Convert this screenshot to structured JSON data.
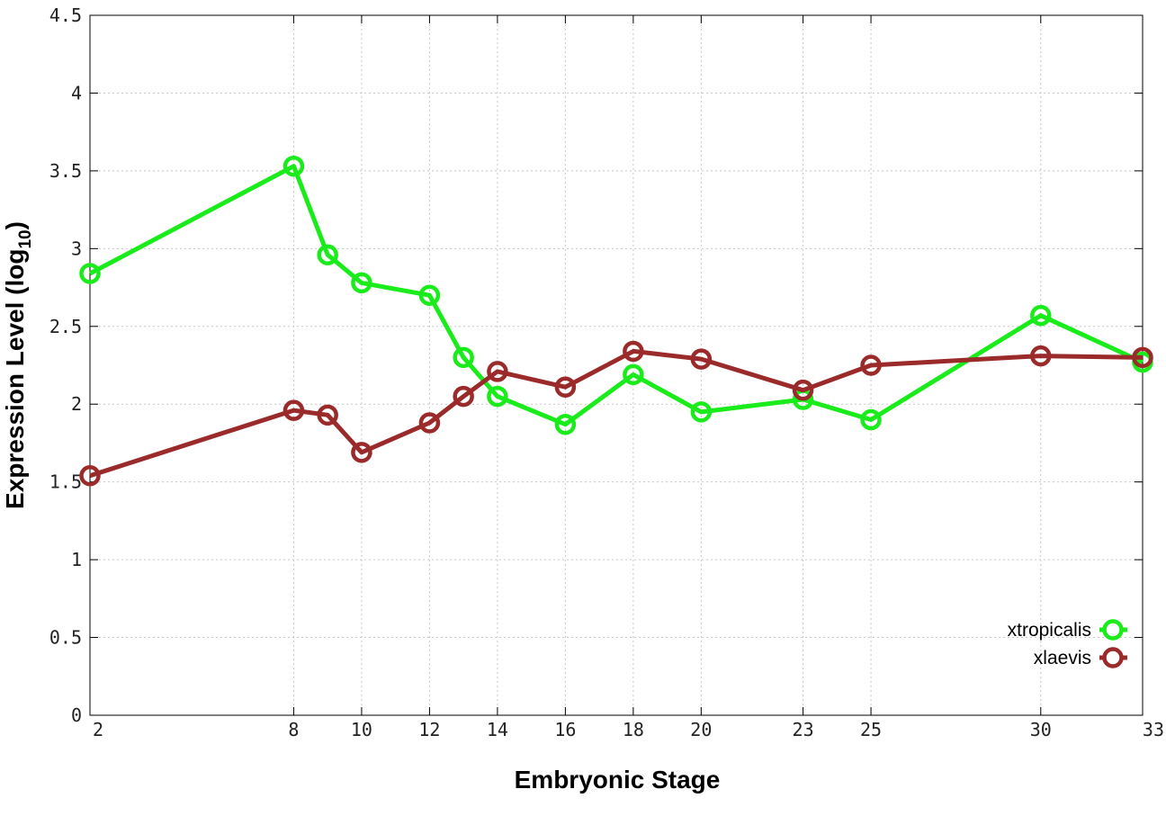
{
  "chart_data": {
    "type": "line",
    "xlabel": "Embryonic Stage",
    "ylabel_main": "Expression Level (log",
    "ylabel_sub": "10",
    "ylabel_close": ")",
    "xlim": [
      2,
      33
    ],
    "ylim": [
      0,
      4.5
    ],
    "x": [
      2,
      8,
      9,
      10,
      12,
      13,
      14,
      16,
      18,
      20,
      23,
      25,
      30,
      33
    ],
    "xticks": [
      2,
      8,
      10,
      12,
      14,
      16,
      18,
      20,
      23,
      25,
      30,
      33
    ],
    "yticks": [
      0,
      0.5,
      1,
      1.5,
      2,
      2.5,
      3,
      3.5,
      4,
      4.5
    ],
    "ytick_labels": [
      "0",
      "0.5",
      "1",
      "1.5",
      "2",
      "2.5",
      "3",
      "3.5",
      "4",
      "4.5"
    ],
    "grid": true,
    "legend_position": "bottom-right",
    "series": [
      {
        "name": "xtropicalis",
        "color": "#1aeb1a",
        "values": [
          2.84,
          3.53,
          2.96,
          2.78,
          2.7,
          2.3,
          2.05,
          1.87,
          2.19,
          1.95,
          2.03,
          1.9,
          2.57,
          2.27
        ]
      },
      {
        "name": "xlaevis",
        "color": "#9b2a2a",
        "values": [
          1.54,
          1.96,
          1.93,
          1.69,
          1.88,
          2.05,
          2.21,
          2.11,
          2.34,
          2.29,
          2.09,
          2.25,
          2.31,
          2.3
        ]
      }
    ]
  }
}
